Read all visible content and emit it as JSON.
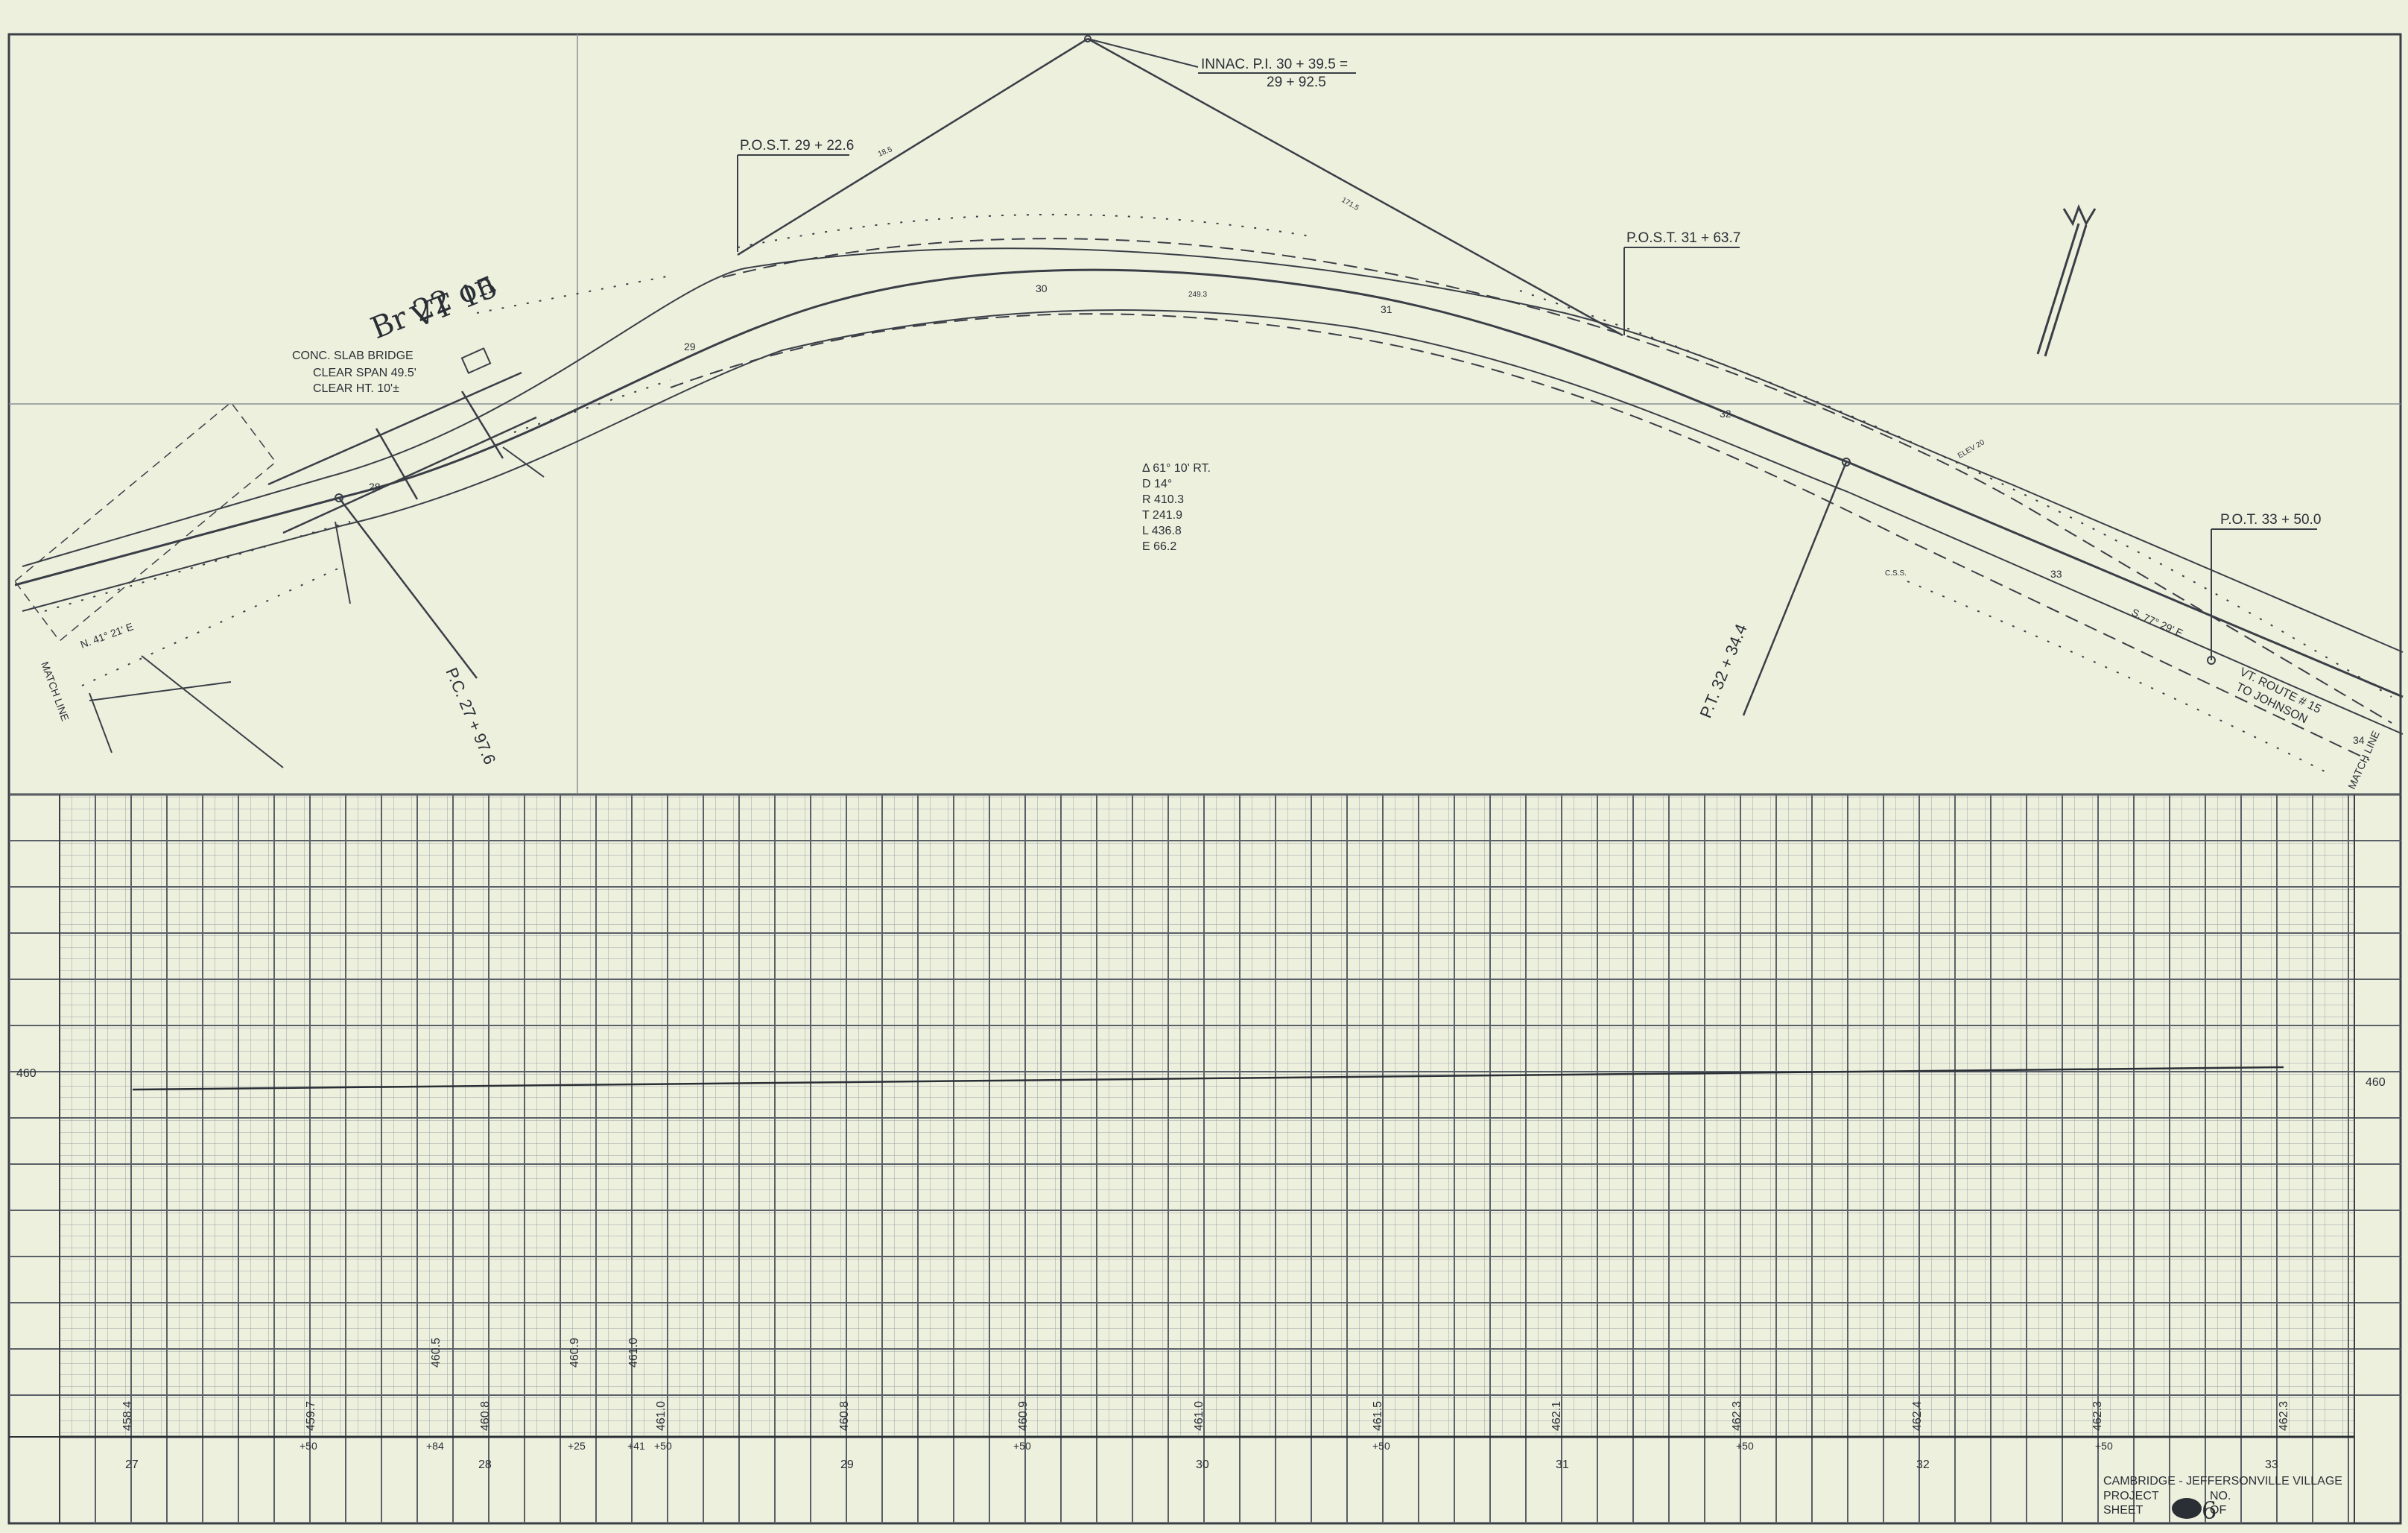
{
  "plan": {
    "pi_label": "INNAC. P.I. 30 + 39.5 =",
    "pi_label_2": "29 + 92.5",
    "post_left": "P.O.S.T. 29 + 22.6",
    "post_right": "P.O.S.T. 31 + 63.7",
    "pot": "P.O.T. 33 + 50.0",
    "pc": "P.C. 27 + 97.6",
    "pt": "P.T. 32 + 34.4",
    "bridge_line1": "CONC. SLAB BRIDGE",
    "bridge_line2": "CLEAR SPAN 49.5'",
    "bridge_line3": "CLEAR HT. 10'±",
    "handwritten_1": "Br 22 on",
    "handwritten_2": "VT 15",
    "curve_data": [
      "Δ 61° 10' RT.",
      "D 14°",
      "R 410.3",
      "T 241.9",
      "L 436.8",
      "E 66.2"
    ],
    "route_1": "VT. ROUTE # 15",
    "route_2": "TO JOHNSON",
    "bearing_right": "S. 77° 29' E",
    "bearing_left": "N. 41° 21' E",
    "match_line": "MATCH LINE",
    "stations": [
      "28",
      "29",
      "30",
      "31",
      "32",
      "33",
      "34"
    ],
    "cross_labels": [
      "18.5",
      "171.5",
      "249.3",
      "C.S.S.",
      "ELEV 20"
    ]
  },
  "profile": {
    "elevation_label": "460",
    "stations": [
      "27",
      "28",
      "29",
      "30",
      "31",
      "32",
      "33"
    ],
    "plus_labels": [
      "+50",
      "+84",
      "+25",
      "+41",
      "+50",
      "+50",
      "+50",
      "+50",
      "+50"
    ],
    "elevations_low": [
      "458.4",
      "459.7",
      "460.8",
      "461.0",
      "460.8",
      "460.9",
      "461.0",
      "461.5",
      "462.1",
      "462.3",
      "462.4",
      "462.3",
      "462.3"
    ],
    "elevations_high": [
      "460.5",
      "460.9",
      "461.0"
    ]
  },
  "title_block": {
    "line1": "CAMBRIDGE - JEFFERSONVILLE VILLAGE",
    "project": "PROJECT",
    "no": "NO.",
    "sheet": "SHEET",
    "of": "OF",
    "sheet_num": "6"
  }
}
